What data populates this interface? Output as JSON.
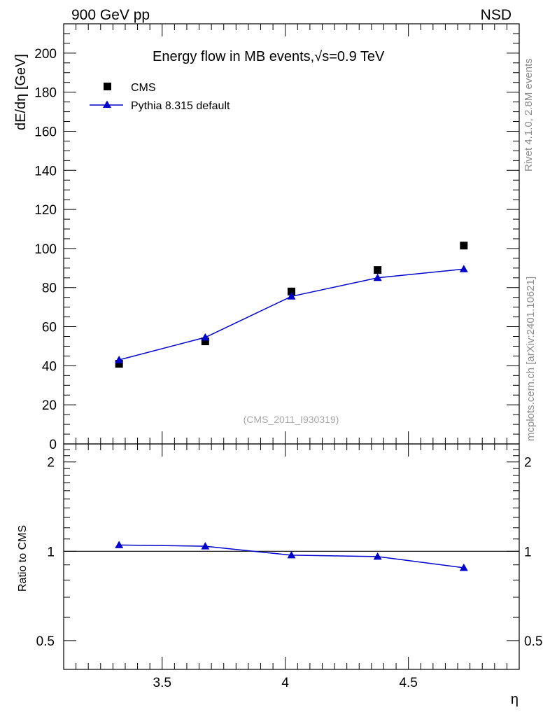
{
  "header": {
    "left": "900 GeV pp",
    "right": "NSD"
  },
  "side_labels": {
    "rivet": "Rivet 4.1.0,  2.8M events",
    "mcplots": "mcplots.cern.ch [arXiv:2401.10621]"
  },
  "chart_data": [
    {
      "type": "scatter",
      "panel": "main",
      "title": "Energy flow in MB events,√s=0.9 TeV",
      "title_prefix": "Energy flow in MB events,",
      "title_sqrt": "s",
      "title_suffix": "=0.9 TeV",
      "ylabel": "dE/dη [GeV]",
      "xlabel": "",
      "ylim": [
        0,
        215
      ],
      "xlim": [
        3.1,
        4.95
      ],
      "yticks": [
        0,
        20,
        40,
        60,
        80,
        100,
        120,
        140,
        160,
        180,
        200
      ],
      "ytick_labels": [
        "0",
        "20",
        "40",
        "60",
        "80",
        "100",
        "120",
        "140",
        "160",
        "180",
        "200"
      ],
      "watermark": "(CMS_2011_I930319)",
      "legend_position": "top-left",
      "series": [
        {
          "name": "CMS",
          "marker": "square",
          "color": "#000000",
          "x": [
            3.325,
            3.675,
            4.025,
            4.375,
            4.725
          ],
          "values": [
            41,
            52.5,
            78,
            89,
            101.5
          ]
        },
        {
          "name": "Pythia 8.315 default",
          "marker": "triangle",
          "line": true,
          "color": "#0000cc",
          "x": [
            3.325,
            3.675,
            4.025,
            4.375,
            4.725
          ],
          "values": [
            43,
            54.5,
            75.5,
            85,
            89.5
          ]
        }
      ]
    },
    {
      "type": "line",
      "panel": "ratio",
      "ylabel": "Ratio to CMS",
      "xlabel": "η",
      "yscale": "log",
      "ylim": [
        0.4,
        2.3
      ],
      "xlim": [
        3.1,
        4.95
      ],
      "yticks": [
        0.5,
        1,
        2
      ],
      "ytick_labels": [
        "0.5",
        "1",
        "2"
      ],
      "xticks": [
        3.5,
        4,
        4.5
      ],
      "xtick_labels": [
        "3.5",
        "4",
        "4.5"
      ],
      "reference_line": 1,
      "series": [
        {
          "name": "Pythia 8.315 default / CMS",
          "marker": "triangle",
          "color": "#0000cc",
          "x": [
            3.325,
            3.675,
            4.025,
            4.375,
            4.725
          ],
          "values": [
            1.05,
            1.04,
            0.97,
            0.96,
            0.88
          ]
        }
      ]
    }
  ]
}
